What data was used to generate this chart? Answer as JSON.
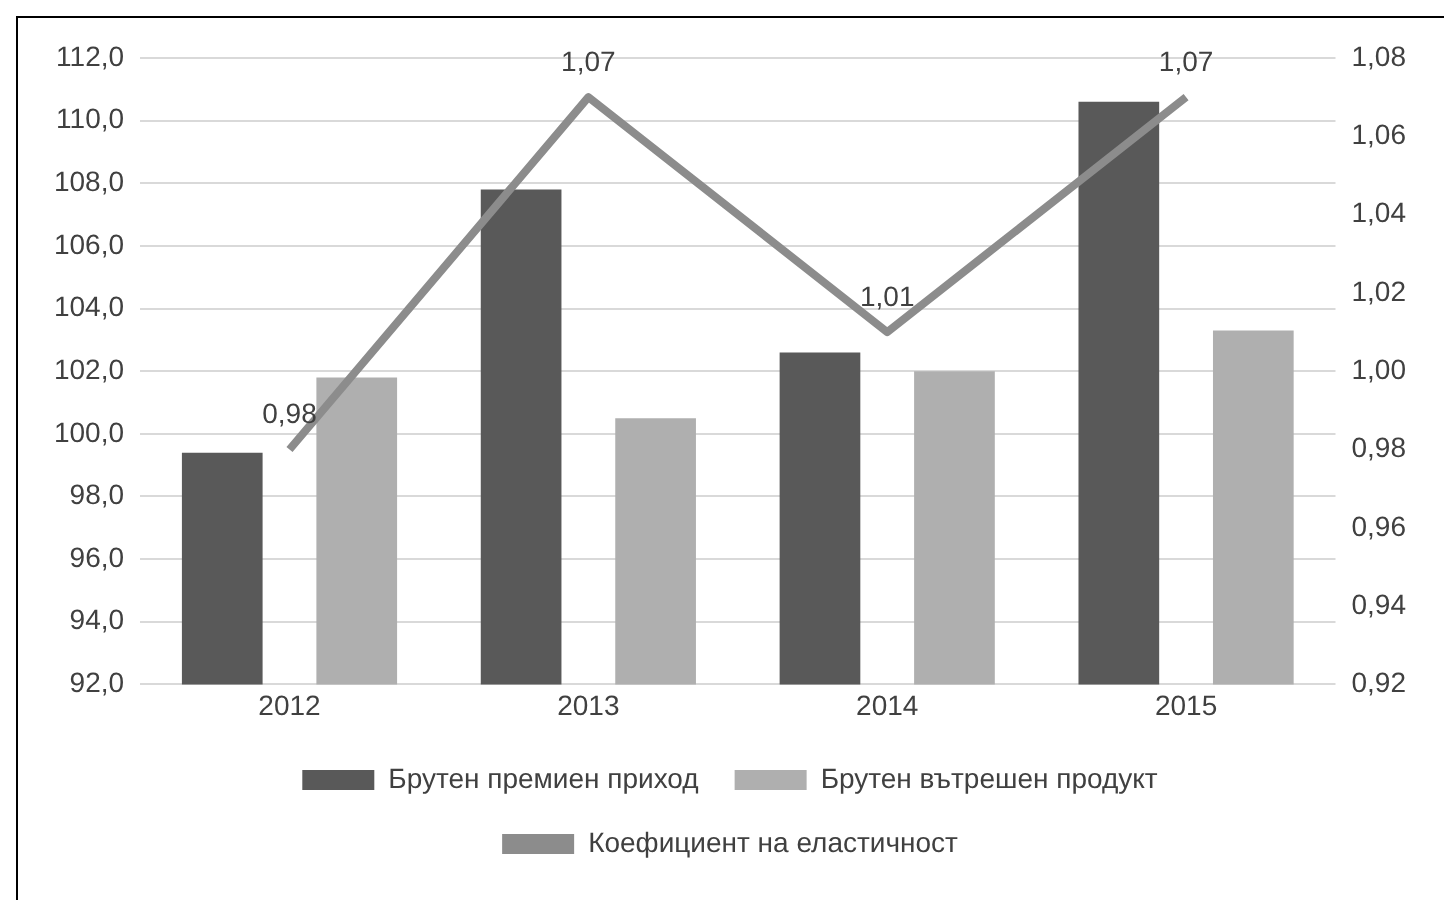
{
  "chart_data": {
    "type": "bar",
    "categories": [
      "2012",
      "2013",
      "2014",
      "2015"
    ],
    "series": [
      {
        "name": "Брутен премиен приход",
        "color": "#595959",
        "values": [
          99.4,
          107.8,
          102.6,
          110.6
        ]
      },
      {
        "name": "Брутен вътрешен продукт",
        "color": "#afafaf",
        "values": [
          101.8,
          100.5,
          102.0,
          103.3
        ]
      },
      {
        "name": "Коефициент на еластичност",
        "type": "line",
        "axis": "y2",
        "color": "#8c8c8c",
        "values": [
          0.98,
          1.07,
          1.01,
          1.07
        ],
        "value_labels": [
          "0,98",
          "1,07",
          "1,01",
          "1,07"
        ],
        "marker": "none"
      }
    ],
    "ylim": [
      92,
      112
    ],
    "yticks": [
      {
        "value": 92,
        "label": "92,0"
      },
      {
        "value": 94,
        "label": "94,0"
      },
      {
        "value": 96,
        "label": "96,0"
      },
      {
        "value": 98,
        "label": "98,0"
      },
      {
        "value": 100,
        "label": "100,0"
      },
      {
        "value": 102,
        "label": "102,0"
      },
      {
        "value": 104,
        "label": "104,0"
      },
      {
        "value": 106,
        "label": "106,0"
      },
      {
        "value": 108,
        "label": "108,0"
      },
      {
        "value": 110,
        "label": "110,0"
      },
      {
        "value": 112,
        "label": "112,0"
      }
    ],
    "y2lim": [
      0.92,
      1.08
    ],
    "y2ticks": [
      {
        "value": 0.92,
        "label": "0,92"
      },
      {
        "value": 0.94,
        "label": "0,94"
      },
      {
        "value": 0.96,
        "label": "0,96"
      },
      {
        "value": 0.98,
        "label": "0,98"
      },
      {
        "value": 1.0,
        "label": "1,00"
      },
      {
        "value": 1.02,
        "label": "1,02"
      },
      {
        "value": 1.04,
        "label": "1,04"
      },
      {
        "value": 1.06,
        "label": "1,06"
      },
      {
        "value": 1.08,
        "label": "1,08"
      }
    ],
    "grid": "y",
    "legend": "bottom"
  }
}
